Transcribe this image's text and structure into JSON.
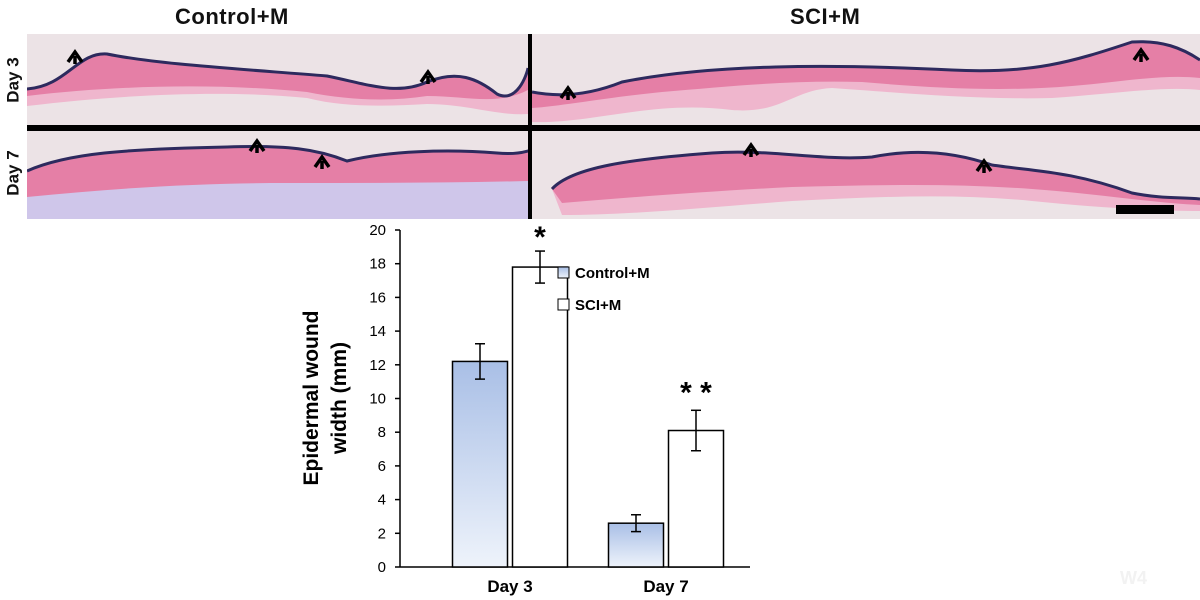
{
  "figure": {
    "col_headers": [
      "Control+M",
      "SCI+M"
    ],
    "row_labels": [
      "Day 3",
      "Day 7"
    ],
    "watermark": "W4"
  },
  "colors": {
    "control_top": "#a9bfe6",
    "control_bottom": "#eef3fb",
    "sci": "#ffffff",
    "tissue": "#e57fa6",
    "tissue_light": "#efb6cd",
    "epidermis": "#2d2a5e",
    "background": "#ece3e6"
  },
  "chart_data": {
    "type": "bar",
    "categories": [
      "Day 3",
      "Day 7"
    ],
    "series": [
      {
        "name": "Control+M",
        "values": [
          12.2,
          2.6
        ],
        "errors": [
          1.05,
          0.5
        ]
      },
      {
        "name": "SCI+M",
        "values": [
          17.8,
          8.1
        ],
        "errors": [
          0.95,
          1.2
        ]
      }
    ],
    "ylabel_lines": [
      "Epidermal wound",
      "width (mm)"
    ],
    "ylim": [
      0,
      20
    ],
    "yticks": [
      0,
      2,
      4,
      6,
      8,
      10,
      12,
      14,
      16,
      18,
      20
    ],
    "significance": [
      {
        "category": "Day 3",
        "series": "SCI+M",
        "label": "*"
      },
      {
        "category": "Day 7",
        "series": "SCI+M",
        "label": "* *"
      }
    ],
    "legend": "top-right"
  }
}
